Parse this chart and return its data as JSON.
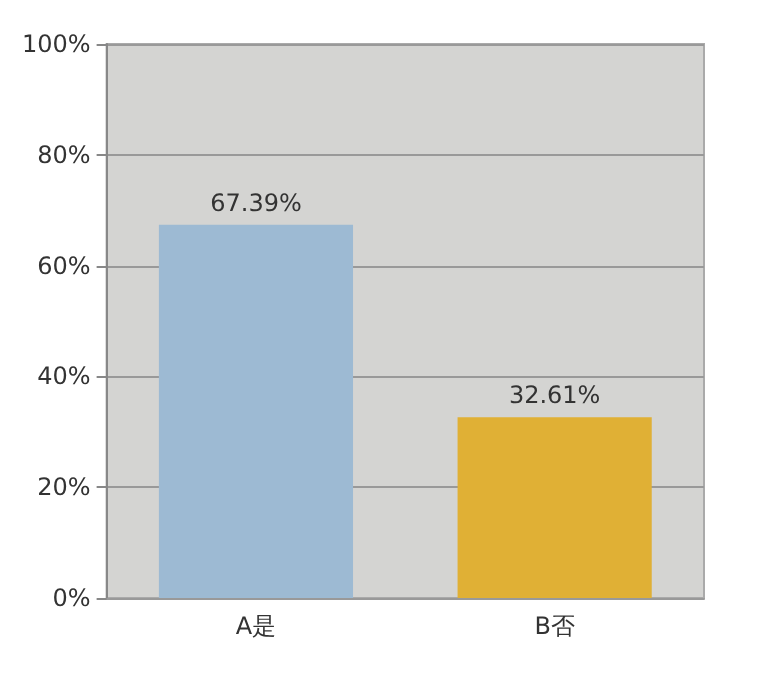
{
  "chart_data": {
    "type": "bar",
    "categories": [
      "A是",
      "B否"
    ],
    "values": [
      67.39,
      32.61
    ],
    "colors": [
      "#9dbad3",
      "#e0b035"
    ],
    "value_labels": [
      "67.39%",
      "32.61%"
    ],
    "ylim": [
      0,
      100
    ],
    "yticks": [
      {
        "value": 0,
        "label": "0%"
      },
      {
        "value": 20,
        "label": "20%"
      },
      {
        "value": 40,
        "label": "40%"
      },
      {
        "value": 60,
        "label": "60%"
      },
      {
        "value": 80,
        "label": "80%"
      },
      {
        "value": 100,
        "label": "100%"
      }
    ],
    "grid": "y"
  }
}
